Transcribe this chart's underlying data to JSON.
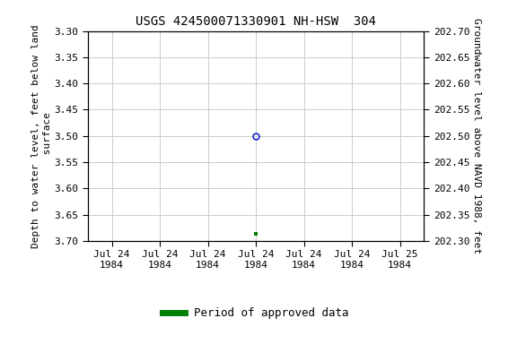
{
  "title": "USGS 424500071330901 NH-HSW  304",
  "ylabel_left": "Depth to water level, feet below land\n surface",
  "ylabel_right": "Groundwater level above NAVD 1988, feet",
  "ylim_left": [
    3.3,
    3.7
  ],
  "ylim_right": [
    202.7,
    202.3
  ],
  "yticks_left": [
    3.3,
    3.35,
    3.4,
    3.45,
    3.5,
    3.55,
    3.6,
    3.65,
    3.7
  ],
  "yticks_right": [
    202.7,
    202.65,
    202.6,
    202.55,
    202.5,
    202.45,
    202.4,
    202.35,
    202.3
  ],
  "point_x": 3.5,
  "point_y": 3.5,
  "green_x": 3.5,
  "green_y": 3.687,
  "xlim": [
    0,
    7
  ],
  "xtick_positions": [
    0.5,
    1.5,
    2.5,
    3.5,
    4.5,
    5.5,
    6.5
  ],
  "xtick_labels": [
    "Jul 24\n1984",
    "Jul 24\n1984",
    "Jul 24\n1984",
    "Jul 24\n1984",
    "Jul 24\n1984",
    "Jul 24\n1984",
    "Jul 25\n1984"
  ],
  "grid_color": "#cccccc",
  "bg_color": "#ffffff",
  "title_fontsize": 10,
  "axis_label_fontsize": 8,
  "tick_fontsize": 8,
  "legend_label": "Period of approved data",
  "legend_color": "#008000",
  "point_color": "#0000cc",
  "point_size": 5
}
